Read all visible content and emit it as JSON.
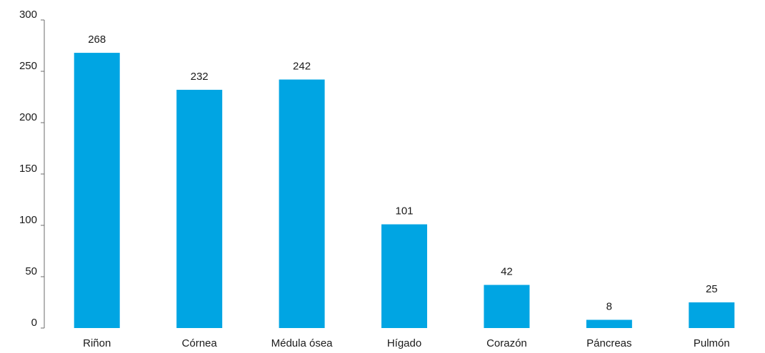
{
  "chart_data": {
    "type": "bar",
    "categories": [
      "Riñon",
      "Córnea",
      "Médula ósea",
      "Hígado",
      "Corazón",
      "Páncreas",
      "Pulmón"
    ],
    "values": [
      268,
      232,
      242,
      101,
      42,
      8,
      25
    ],
    "data_labels": [
      "268",
      "232",
      "242",
      "101",
      "42",
      "8",
      "25"
    ],
    "yticks": [
      0,
      50,
      100,
      150,
      200,
      250,
      300
    ],
    "ytick_labels": [
      "0",
      "50",
      "100",
      "150",
      "200",
      "250",
      "300"
    ],
    "ylim": [
      0,
      300
    ],
    "title": "",
    "xlabel": "",
    "ylabel": "",
    "grid": false,
    "legend": "none",
    "bar_color": "#00A5E3"
  }
}
